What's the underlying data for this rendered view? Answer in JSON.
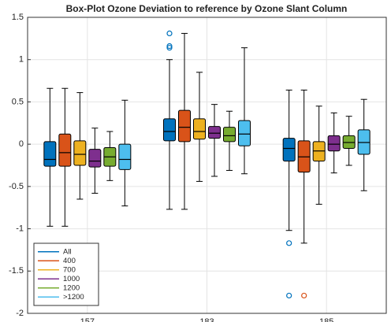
{
  "chart_data": {
    "type": "boxplot",
    "title": "Box-Plot Ozone Deviation to reference by Ozone Slant Column",
    "categories": [
      "157",
      "183",
      "185"
    ],
    "ylim": [
      -2,
      1.5
    ],
    "yticks": [
      -2,
      -1.5,
      -1,
      -0.5,
      0,
      0.5,
      1,
      1.5
    ],
    "grid": true,
    "legend": "lower-left",
    "series": [
      {
        "name": "All",
        "color": "#0072bd",
        "values": [
          {
            "min": -0.97,
            "q1": -0.26,
            "median": -0.18,
            "q3": 0.03,
            "max": 0.66,
            "outliers": []
          },
          {
            "min": -0.77,
            "q1": 0.04,
            "median": 0.15,
            "q3": 0.3,
            "max": 1.0,
            "outliers": [
              1.31,
              1.16,
              1.14
            ]
          },
          {
            "min": -1.02,
            "q1": -0.2,
            "median": -0.05,
            "q3": 0.07,
            "max": 0.64,
            "outliers": [
              -1.17,
              -1.79
            ]
          }
        ]
      },
      {
        "name": "400",
        "color": "#d95319",
        "values": [
          {
            "min": -0.97,
            "q1": -0.26,
            "median": -0.1,
            "q3": 0.12,
            "max": 0.66,
            "outliers": []
          },
          {
            "min": -0.77,
            "q1": 0.03,
            "median": 0.2,
            "q3": 0.4,
            "max": 1.31,
            "outliers": []
          },
          {
            "min": -1.17,
            "q1": -0.33,
            "median": -0.15,
            "q3": 0.04,
            "max": 0.64,
            "outliers": [
              -1.79
            ]
          }
        ]
      },
      {
        "name": "700",
        "color": "#edb120",
        "values": [
          {
            "min": -0.65,
            "q1": -0.25,
            "median": -0.12,
            "q3": 0.04,
            "max": 0.61,
            "outliers": []
          },
          {
            "min": -0.44,
            "q1": 0.06,
            "median": 0.15,
            "q3": 0.3,
            "max": 0.85,
            "outliers": []
          },
          {
            "min": -0.71,
            "q1": -0.2,
            "median": -0.08,
            "q3": 0.03,
            "max": 0.45,
            "outliers": []
          }
        ]
      },
      {
        "name": "1000",
        "color": "#7e2f8e",
        "values": [
          {
            "min": -0.58,
            "q1": -0.27,
            "median": -0.2,
            "q3": -0.06,
            "max": 0.19,
            "outliers": []
          },
          {
            "min": -0.38,
            "q1": 0.07,
            "median": 0.13,
            "q3": 0.21,
            "max": 0.47,
            "outliers": []
          },
          {
            "min": -0.34,
            "q1": -0.08,
            "median": 0.0,
            "q3": 0.1,
            "max": 0.37,
            "outliers": []
          }
        ]
      },
      {
        "name": "1200",
        "color": "#77ac30",
        "values": [
          {
            "min": -0.43,
            "q1": -0.26,
            "median": -0.15,
            "q3": -0.04,
            "max": 0.15,
            "outliers": []
          },
          {
            "min": -0.31,
            "q1": 0.03,
            "median": 0.1,
            "q3": 0.2,
            "max": 0.39,
            "outliers": []
          },
          {
            "min": -0.25,
            "q1": -0.05,
            "median": 0.02,
            "q3": 0.1,
            "max": 0.33,
            "outliers": []
          }
        ]
      },
      {
        "name": ">1200",
        "color": "#4dbeee",
        "values": [
          {
            "min": -0.73,
            "q1": -0.3,
            "median": -0.18,
            "q3": 0.0,
            "max": 0.52,
            "outliers": []
          },
          {
            "min": -0.35,
            "q1": -0.02,
            "median": 0.12,
            "q3": 0.28,
            "max": 1.14,
            "outliers": []
          },
          {
            "min": -0.55,
            "q1": -0.12,
            "median": 0.02,
            "q3": 0.17,
            "max": 0.53,
            "outliers": []
          }
        ]
      }
    ]
  }
}
